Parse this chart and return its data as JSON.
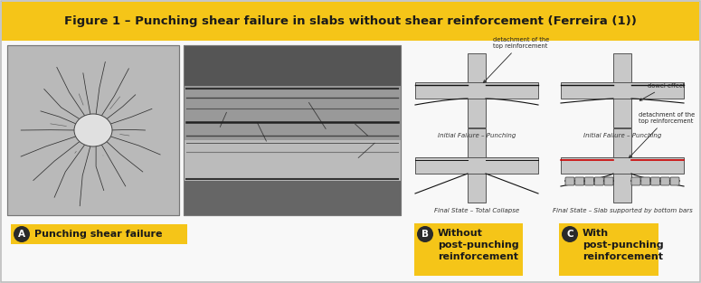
{
  "title": "Figure 1 – Punching shear failure in slabs without shear reinforcement (Ferreira (1))",
  "title_bg_color": "#F5C518",
  "title_text_color": "#1a1a1a",
  "outer_bg_color": "#ffffff",
  "border_color": "#bbbbbb",
  "label_A_text": "Punching shear failure",
  "label_B_text": "Without\npost-punching\nreinforcement",
  "label_C_text": "With\npost-punching\nreinforcement",
  "label_bg_color": "#F5C518",
  "label_text_color": "#1a1a1a",
  "label_circle_color": "#2a2a2a",
  "label_circle_text_color": "#ffffff",
  "slab_color": "#c8c8c8",
  "slab_edge": "#555555",
  "diagram_text_color": "#333333",
  "annotation_color": "#222222",
  "fig_width": 7.75,
  "fig_height": 3.13,
  "dpi": 100
}
